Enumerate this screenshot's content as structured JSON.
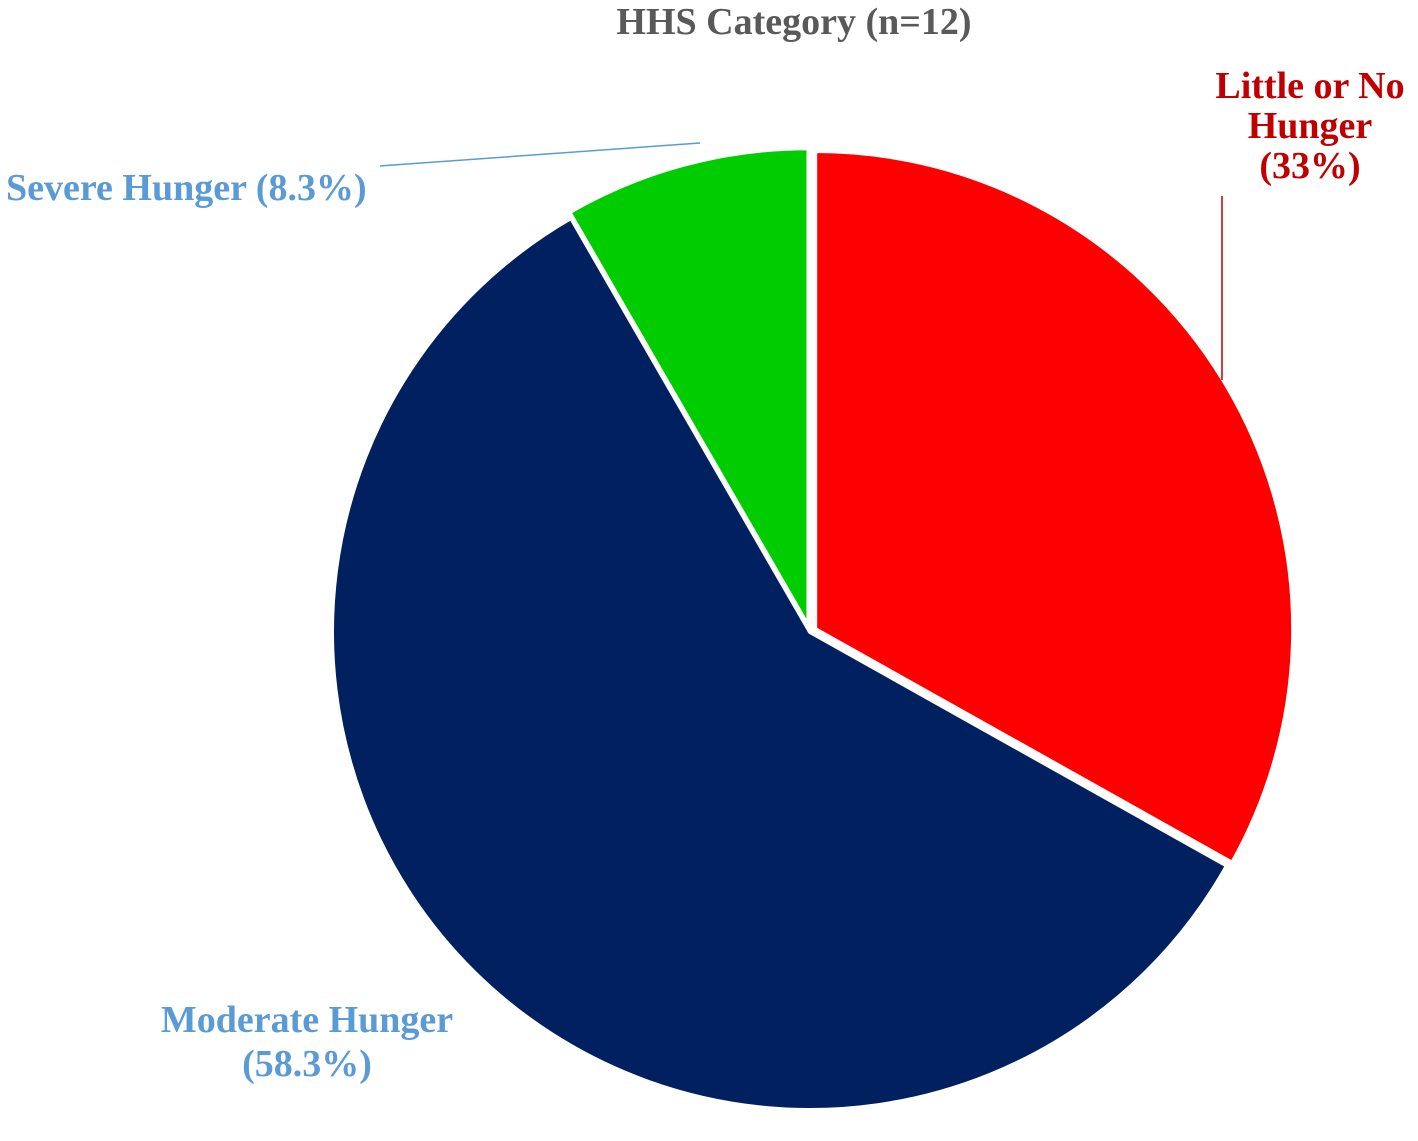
{
  "chart_data": {
    "type": "pie",
    "title": "HHS Category (n=12)",
    "slices": [
      {
        "label_lines": [
          "Little or No",
          "Hunger",
          "(33%)"
        ],
        "value": 33,
        "color": "#ff0000",
        "label_color": "#c00000"
      },
      {
        "label_lines": [
          "Moderate Hunger",
          "(58.3%)"
        ],
        "value": 58.3,
        "color": "#002060",
        "label_color": "#5b9bd5"
      },
      {
        "label_lines": [
          "Severe Hunger (8.3%)"
        ],
        "value": 8.3,
        "color": "#00cc00",
        "label_color": "#5b9bd5"
      }
    ],
    "start_angle": "12 o'clock",
    "direction": "clockwise",
    "legend": "none"
  }
}
